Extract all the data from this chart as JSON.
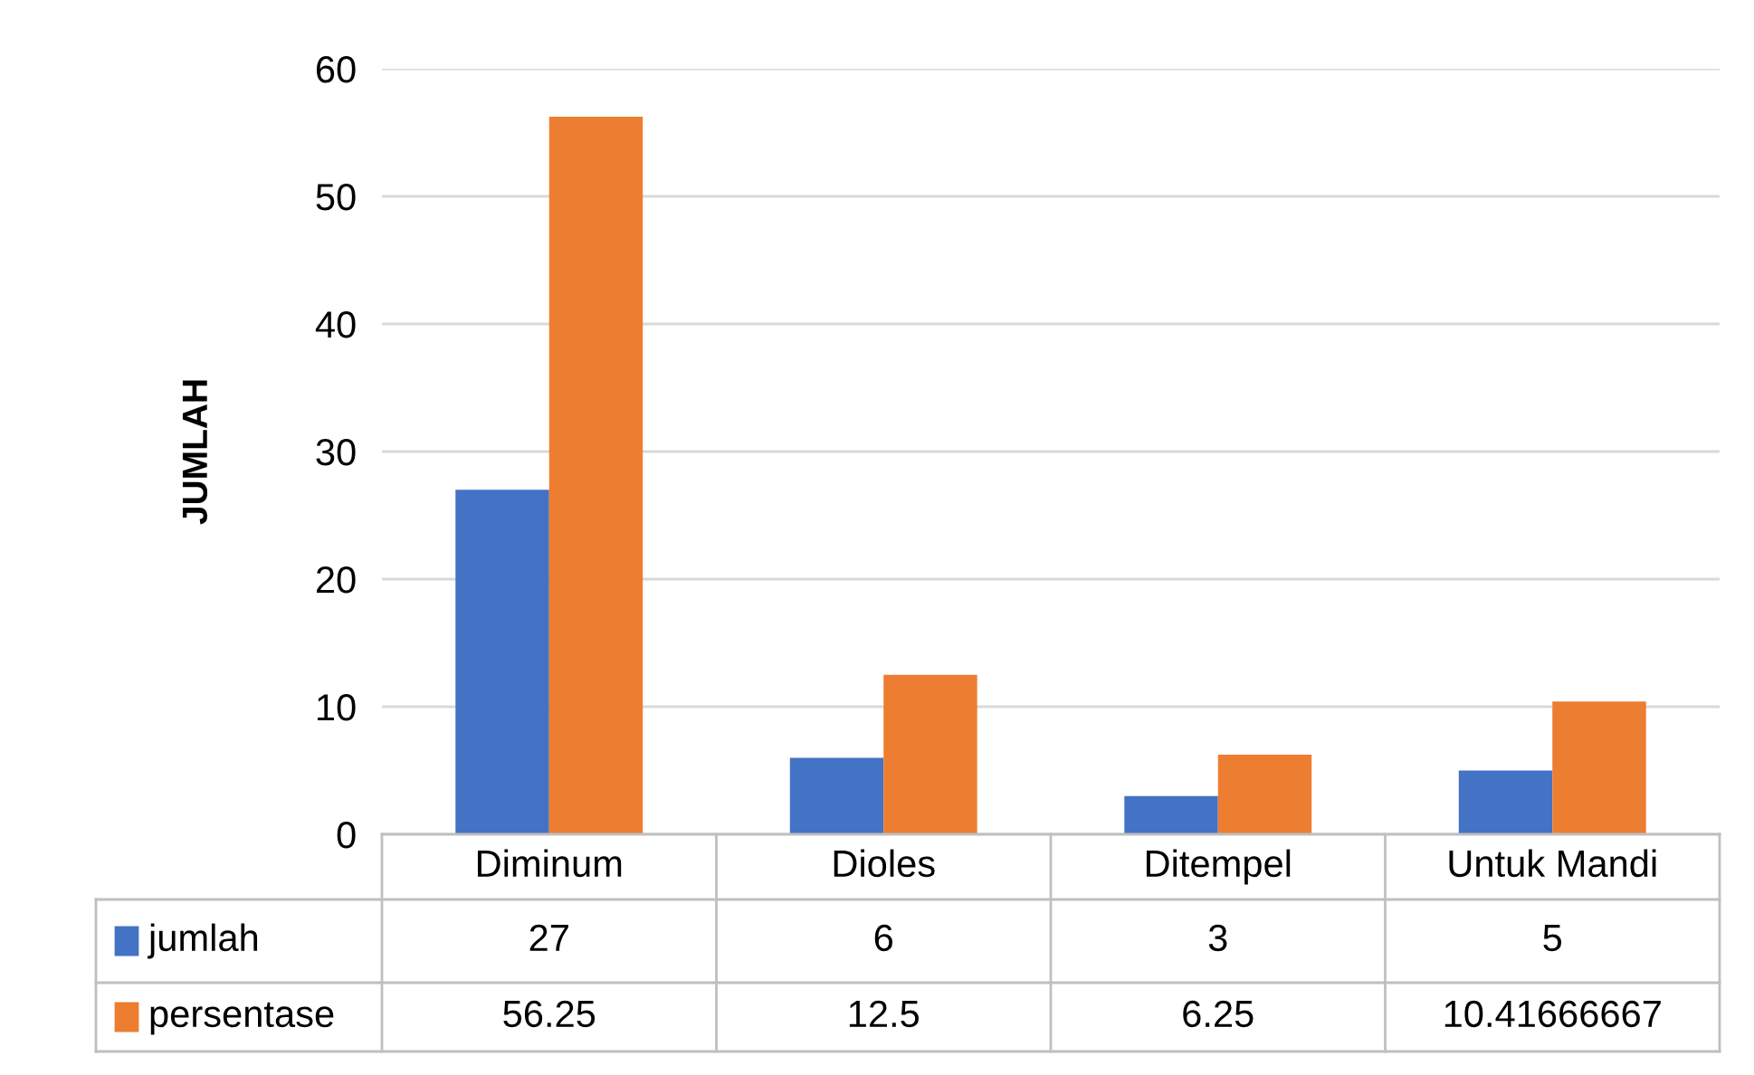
{
  "chart_data": {
    "type": "bar",
    "ylabel": "JUMLAH",
    "categories": [
      "Diminum",
      "Dioles",
      "Ditempel",
      "Untuk Mandi"
    ],
    "series": [
      {
        "name": "jumlah",
        "color": "#4472c4",
        "values": [
          27,
          6,
          3,
          5
        ]
      },
      {
        "name": "persentase",
        "color": "#ed7d31",
        "values": [
          56.25,
          12.5,
          6.25,
          10.41666667
        ]
      }
    ],
    "ylim": [
      0,
      60
    ],
    "yticks": [
      0,
      10,
      20,
      30,
      40,
      50,
      60
    ],
    "grid": "y",
    "legend": "bottom",
    "data_labels": true
  }
}
